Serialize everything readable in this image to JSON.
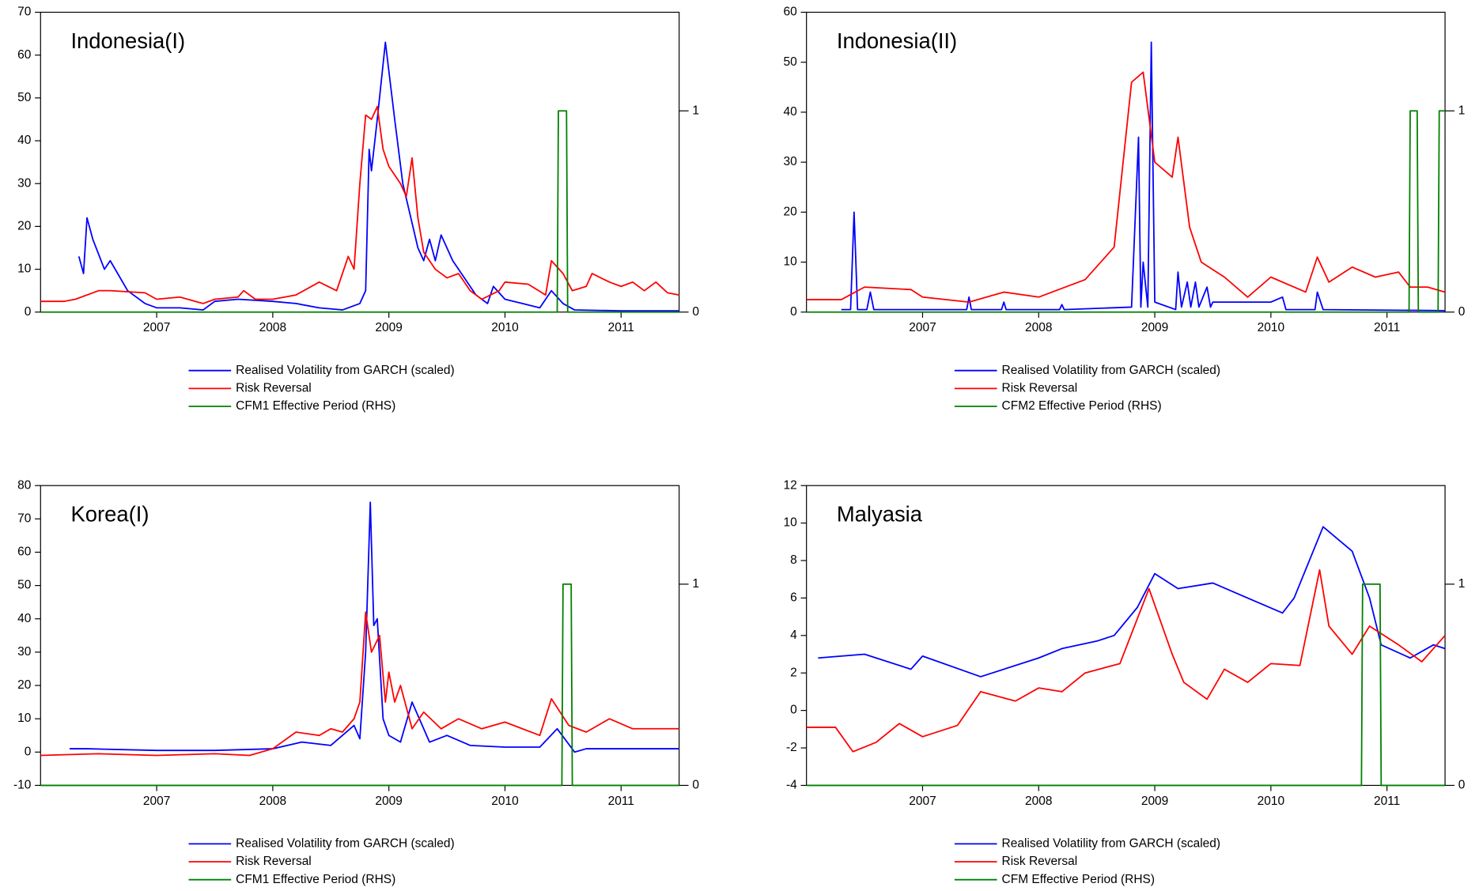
{
  "chart_data": [
    {
      "type": "line",
      "title": "Indonesia(I)",
      "xlim": [
        2006.0,
        2011.5
      ],
      "xticks": [
        2007,
        2008,
        2009,
        2010,
        2011
      ],
      "ylim": [
        0,
        70
      ],
      "yticks": [
        0,
        10,
        20,
        30,
        40,
        50,
        60,
        70
      ],
      "y2lim": [
        0,
        1.49
      ],
      "y2ticks": [
        0,
        1
      ],
      "series": [
        {
          "name": "Realised Volatility from GARCH  (scaled)",
          "color": "#0000ff",
          "x": [
            2006.33,
            2006.37,
            2006.4,
            2006.45,
            2006.55,
            2006.6,
            2006.75,
            2006.9,
            2007.0,
            2007.2,
            2007.4,
            2007.5,
            2007.7,
            2008.0,
            2008.2,
            2008.4,
            2008.6,
            2008.75,
            2008.8,
            2008.83,
            2008.85,
            2008.9,
            2008.97,
            2009.05,
            2009.12,
            2009.25,
            2009.3,
            2009.35,
            2009.4,
            2009.45,
            2009.55,
            2009.65,
            2009.75,
            2009.85,
            2009.9,
            2010.0,
            2010.15,
            2010.3,
            2010.4,
            2010.5,
            2010.6,
            2011.0,
            2011.5
          ],
          "values": [
            13,
            9,
            22,
            17,
            10,
            12,
            5,
            2,
            1,
            1,
            0.5,
            2.5,
            3,
            2.5,
            2,
            1,
            0.5,
            2,
            5,
            38,
            33,
            45,
            63,
            45,
            30,
            15,
            12,
            17,
            12,
            18,
            12,
            8,
            4,
            2,
            6,
            3,
            2,
            1,
            5,
            2,
            0.5,
            0.3,
            0.3
          ]
        },
        {
          "name": "Risk Reversal",
          "color": "#ff0000",
          "x": [
            2006.0,
            2006.2,
            2006.3,
            2006.5,
            2006.6,
            2006.9,
            2007.0,
            2007.2,
            2007.4,
            2007.5,
            2007.7,
            2007.75,
            2007.85,
            2008.0,
            2008.2,
            2008.4,
            2008.55,
            2008.65,
            2008.7,
            2008.75,
            2008.8,
            2008.85,
            2008.9,
            2008.95,
            2009.0,
            2009.1,
            2009.15,
            2009.2,
            2009.25,
            2009.3,
            2009.4,
            2009.5,
            2009.6,
            2009.7,
            2009.8,
            2009.95,
            2010.0,
            2010.2,
            2010.35,
            2010.4,
            2010.5,
            2010.58,
            2010.7,
            2010.75,
            2010.9,
            2011.0,
            2011.1,
            2011.2,
            2011.3,
            2011.4,
            2011.5
          ],
          "values": [
            2.5,
            2.5,
            3,
            5,
            5,
            4.5,
            3,
            3.5,
            2,
            3,
            3.5,
            5,
            3,
            3,
            4,
            7,
            5,
            13,
            10,
            30,
            46,
            45,
            48,
            38,
            34,
            30,
            27,
            36,
            22,
            14,
            10,
            8,
            9,
            5,
            3,
            5,
            7,
            6.5,
            4,
            12,
            9,
            5,
            6,
            9,
            7,
            6,
            7,
            5,
            7,
            4.5,
            4
          ]
        },
        {
          "name": "CFM1 Effective Period (RHS)",
          "color": "#008000",
          "axis": "y2",
          "x": [
            2006.0,
            2010.45,
            2010.46,
            2010.53,
            2010.54,
            2011.5
          ],
          "values": [
            0,
            0,
            1,
            1,
            0,
            0
          ]
        }
      ]
    },
    {
      "type": "line",
      "title": "Indonesia(II)",
      "xlim": [
        2006.0,
        2011.5
      ],
      "xticks": [
        2007,
        2008,
        2009,
        2010,
        2011
      ],
      "ylim": [
        0,
        60
      ],
      "yticks": [
        0,
        10,
        20,
        30,
        40,
        50,
        60
      ],
      "y2lim": [
        0,
        1.49
      ],
      "y2ticks": [
        0,
        1
      ],
      "series": [
        {
          "name": "Realised Volatility from GARCH  (scaled)",
          "color": "#0000ff",
          "x": [
            2006.3,
            2006.38,
            2006.41,
            2006.44,
            2006.52,
            2006.55,
            2006.58,
            2007.0,
            2007.38,
            2007.4,
            2007.42,
            2007.68,
            2007.7,
            2007.72,
            2008.18,
            2008.2,
            2008.22,
            2008.8,
            2008.86,
            2008.88,
            2008.9,
            2008.94,
            2008.97,
            2009.0,
            2009.18,
            2009.2,
            2009.23,
            2009.28,
            2009.31,
            2009.35,
            2009.38,
            2009.45,
            2009.48,
            2009.5,
            2010.0,
            2010.1,
            2010.13,
            2010.38,
            2010.4,
            2010.45,
            2011.5
          ],
          "values": [
            0.5,
            0.5,
            20,
            0.5,
            0.5,
            4,
            0.5,
            0.5,
            0.5,
            3,
            0.5,
            0.5,
            2,
            0.5,
            0.5,
            1.5,
            0.5,
            1,
            35,
            1,
            10,
            1,
            54,
            2,
            0.5,
            8,
            1,
            6,
            1,
            6,
            1,
            5,
            1,
            2,
            2,
            3,
            0.5,
            0.5,
            4,
            0.5,
            0.3
          ]
        },
        {
          "name": "Risk Reversal",
          "color": "#ff0000",
          "x": [
            2006.0,
            2006.3,
            2006.5,
            2006.9,
            2007.0,
            2007.4,
            2007.7,
            2008.0,
            2008.4,
            2008.65,
            2008.8,
            2008.9,
            2009.0,
            2009.15,
            2009.2,
            2009.3,
            2009.4,
            2009.6,
            2009.8,
            2010.0,
            2010.3,
            2010.4,
            2010.5,
            2010.7,
            2010.9,
            2011.1,
            2011.2,
            2011.35,
            2011.5
          ],
          "values": [
            2.5,
            2.5,
            5,
            4.5,
            3,
            2,
            4,
            3,
            6.5,
            13,
            46,
            48,
            30,
            27,
            35,
            17,
            10,
            7,
            3,
            7,
            4,
            11,
            6,
            9,
            7,
            8,
            5,
            5,
            4
          ]
        },
        {
          "name": "CFM2 Effective Period (RHS)",
          "color": "#008000",
          "axis": "y2",
          "x": [
            2006.0,
            2011.19,
            2011.2,
            2011.26,
            2011.27,
            2011.44,
            2011.45,
            2011.5
          ],
          "values": [
            0,
            0,
            1,
            1,
            0,
            0,
            1,
            1
          ]
        }
      ]
    },
    {
      "type": "line",
      "title": "Korea(I)",
      "xlim": [
        2006.0,
        2011.5
      ],
      "xticks": [
        2007,
        2008,
        2009,
        2010,
        2011
      ],
      "ylim": [
        -10,
        80
      ],
      "yticks": [
        -10,
        0,
        10,
        20,
        30,
        40,
        50,
        60,
        70,
        80
      ],
      "y2lim": [
        0,
        1.49
      ],
      "y2ticks": [
        0,
        1
      ],
      "series": [
        {
          "name": "Realised Volatility from GARCH  (scaled)",
          "color": "#0000ff",
          "x": [
            2006.25,
            2006.4,
            2007.0,
            2007.5,
            2008.0,
            2008.25,
            2008.5,
            2008.6,
            2008.7,
            2008.75,
            2008.8,
            2008.84,
            2008.87,
            2008.9,
            2008.95,
            2009.0,
            2009.1,
            2009.2,
            2009.35,
            2009.5,
            2009.7,
            2010.0,
            2010.3,
            2010.45,
            2010.6,
            2010.7,
            2011.0,
            2011.5
          ],
          "values": [
            1,
            1,
            0.5,
            0.5,
            1,
            3,
            2,
            5,
            8,
            4,
            30,
            75,
            38,
            40,
            10,
            5,
            3,
            15,
            3,
            5,
            2,
            1.5,
            1.5,
            7,
            0,
            1,
            1,
            1
          ]
        },
        {
          "name": "Risk Reversal",
          "color": "#ff0000",
          "x": [
            2006.0,
            2006.5,
            2007.0,
            2007.5,
            2007.8,
            2008.0,
            2008.2,
            2008.4,
            2008.5,
            2008.6,
            2008.7,
            2008.75,
            2008.8,
            2008.85,
            2008.92,
            2008.97,
            2009.0,
            2009.05,
            2009.1,
            2009.2,
            2009.3,
            2009.45,
            2009.6,
            2009.8,
            2010.0,
            2010.3,
            2010.4,
            2010.55,
            2010.7,
            2010.9,
            2011.1,
            2011.3,
            2011.5
          ],
          "values": [
            -1,
            -0.5,
            -1,
            -0.5,
            -1,
            1,
            6,
            5,
            7,
            6,
            10,
            15,
            42,
            30,
            35,
            15,
            24,
            15,
            20,
            7,
            12,
            7,
            10,
            7,
            9,
            5,
            16,
            8,
            6,
            10,
            7,
            7,
            7
          ]
        },
        {
          "name": "CFM1 Effective Period (RHS)",
          "color": "#008000",
          "axis": "y2",
          "x": [
            2006.0,
            2010.49,
            2010.5,
            2010.57,
            2010.58,
            2011.5
          ],
          "values": [
            0,
            0,
            1,
            1,
            0,
            0
          ]
        }
      ]
    },
    {
      "type": "line",
      "title": "Malyasia",
      "xlim": [
        2006.0,
        2011.5
      ],
      "xticks": [
        2007,
        2008,
        2009,
        2010,
        2011
      ],
      "ylim": [
        -4,
        12
      ],
      "yticks": [
        -4,
        -2,
        0,
        2,
        4,
        6,
        8,
        10,
        12
      ],
      "y2lim": [
        0,
        1.49
      ],
      "y2ticks": [
        0,
        1
      ],
      "series": [
        {
          "name": "Realised Volatility from GARCH  (scaled)",
          "color": "#0000ff",
          "x": [
            2006.1,
            2006.5,
            2006.9,
            2007.0,
            2007.5,
            2008.0,
            2008.2,
            2008.5,
            2008.65,
            2008.85,
            2009.0,
            2009.2,
            2009.5,
            2009.8,
            2010.1,
            2010.2,
            2010.45,
            2010.7,
            2010.85,
            2010.95,
            2011.2,
            2011.4,
            2011.5
          ],
          "values": [
            2.8,
            3.0,
            2.2,
            2.9,
            1.8,
            2.8,
            3.3,
            3.7,
            4,
            5.5,
            7.3,
            6.5,
            6.8,
            6,
            5.2,
            6,
            9.8,
            8.5,
            6,
            3.5,
            2.8,
            3.5,
            3.3
          ]
        },
        {
          "name": "Risk Reversal",
          "color": "#ff0000",
          "x": [
            2006.0,
            2006.25,
            2006.4,
            2006.6,
            2006.8,
            2007.0,
            2007.3,
            2007.5,
            2007.8,
            2008.0,
            2008.2,
            2008.4,
            2008.7,
            2008.95,
            2009.15,
            2009.25,
            2009.45,
            2009.6,
            2009.8,
            2010.0,
            2010.25,
            2010.42,
            2010.5,
            2010.7,
            2010.85,
            2011.1,
            2011.3,
            2011.5
          ],
          "values": [
            -0.9,
            -0.9,
            -2.2,
            -1.7,
            -0.7,
            -1.4,
            -0.8,
            1,
            0.5,
            1.2,
            1,
            2,
            2.5,
            6.5,
            3,
            1.5,
            0.6,
            2.2,
            1.5,
            2.5,
            2.4,
            7.5,
            4.5,
            3,
            4.5,
            3.5,
            2.6,
            4
          ]
        },
        {
          "name": "CFM Effective Period (RHS)",
          "color": "#008000",
          "axis": "y2",
          "x": [
            2006.0,
            2010.78,
            2010.79,
            2010.94,
            2010.95,
            2011.5
          ],
          "values": [
            0,
            0,
            1,
            1,
            0,
            0
          ]
        }
      ]
    }
  ]
}
